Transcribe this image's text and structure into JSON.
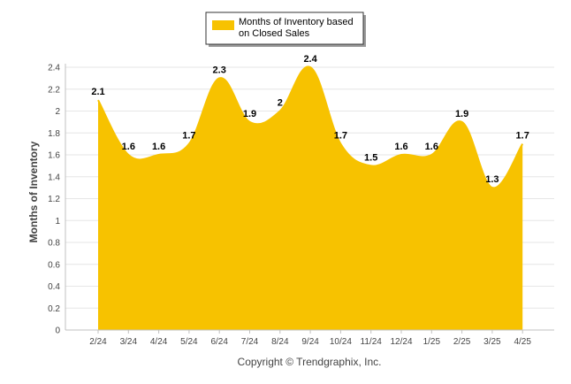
{
  "chart_data": {
    "type": "area",
    "categories": [
      "2/24",
      "3/24",
      "4/24",
      "5/24",
      "6/24",
      "7/24",
      "8/24",
      "9/24",
      "10/24",
      "11/24",
      "12/24",
      "1/25",
      "2/25",
      "3/25",
      "4/25"
    ],
    "series": [
      {
        "name": "Months of Inventory based on Closed Sales",
        "values": [
          2.1,
          1.6,
          1.6,
          1.7,
          2.3,
          1.9,
          2.0,
          2.4,
          1.7,
          1.5,
          1.6,
          1.6,
          1.9,
          1.3,
          1.7
        ],
        "labels": [
          "2.1",
          "1.6",
          "1.6",
          "1.7",
          "2.3",
          "1.9",
          "2",
          "2.4",
          "1.7",
          "1.5",
          "1.6",
          "1.6",
          "1.9",
          "1.3",
          "1.7"
        ],
        "color": "#F7C200"
      }
    ],
    "ylabel": "Months of Inventory",
    "xlabel": "",
    "ylim": [
      0,
      2.4
    ],
    "yticks": [
      "0",
      "0.2",
      "0.4",
      "0.6",
      "0.8",
      "1",
      "1.2",
      "1.4",
      "1.6",
      "1.8",
      "2",
      "2.2",
      "2.4"
    ],
    "grid": true,
    "legend_position": "top-center",
    "legend_lines": [
      "Months of Inventory based",
      "on Closed Sales"
    ]
  },
  "footer": {
    "copyright": "Copyright © Trendgraphix, Inc."
  },
  "colors": {
    "area": "#F7C200",
    "grid": "#E6E6E6",
    "axis": "#C0C0C0"
  }
}
